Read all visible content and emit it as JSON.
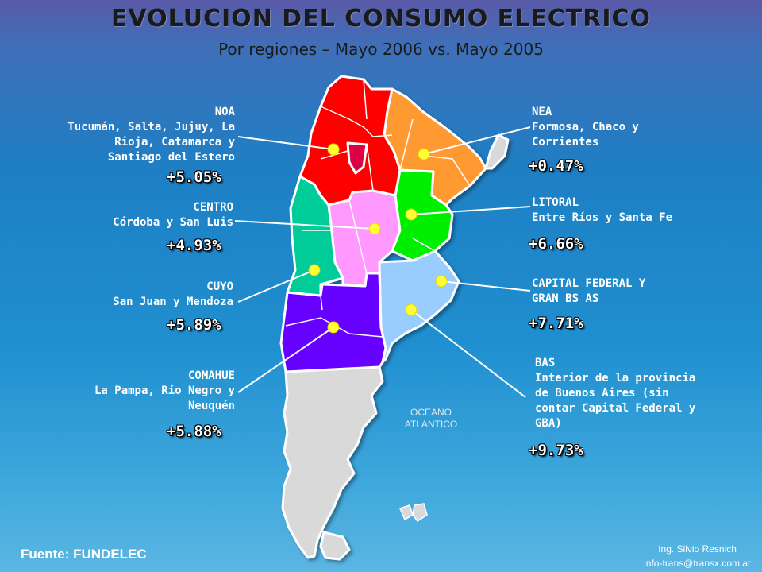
{
  "title": "EVOLUCION DEL CONSUMO ELECTRICO",
  "subtitle": "Por regiones – Mayo 2006 vs. Mayo 2005",
  "regions": {
    "noa": {
      "name": "NOA",
      "lines": [
        "Tucumán, Salta, Jujuy, La",
        "Rioja, Catamarca y",
        "Santiago del Estero"
      ],
      "pct": "+5.05%",
      "value": 5.05,
      "color": "#ff0000"
    },
    "centro": {
      "name": "CENTRO",
      "lines": [
        "Córdoba y San Luis"
      ],
      "pct": "+4.93%",
      "value": 4.93,
      "color": "#ff99ff"
    },
    "cuyo": {
      "name": "CUYO",
      "lines": [
        "San Juan y Mendoza"
      ],
      "pct": "+5.89%",
      "value": 5.89,
      "color": "#00cc99"
    },
    "comahue": {
      "name": "COMAHUE",
      "lines": [
        "La Pampa, Río Negro y",
        "Neuquén"
      ],
      "pct": "+5.88%",
      "value": 5.88,
      "color": "#6600ff"
    },
    "nea": {
      "name": "NEA",
      "lines": [
        "Formosa, Chaco y",
        "Corrientes"
      ],
      "pct": "+0.47%",
      "value": 0.47,
      "color": "#ff9933"
    },
    "litoral": {
      "name": "LITORAL",
      "lines": [
        "Entre Ríos y Santa Fe"
      ],
      "pct": "+6.66%",
      "value": 6.66,
      "color": "#00ee00"
    },
    "capital": {
      "name": "CAPITAL FEDERAL Y",
      "lines": [
        "GRAN BS AS"
      ],
      "pct": "+7.71%",
      "value": 7.71,
      "color": "#99ccff"
    },
    "bas": {
      "name": "BAS",
      "lines": [
        "Interior de la provincia",
        "de Buenos Aires (sin",
        "contar Capital Federal y",
        "GBA)"
      ],
      "pct": "+9.73%",
      "value": 9.73,
      "color": "#99ccff"
    }
  },
  "ocean_label": [
    "OCEANO",
    "ATLANTICO"
  ],
  "source": "Fuente: FUNDELEC",
  "credit": [
    "Ing. Silvio Resnich",
    "info-trans@transx.com.ar"
  ],
  "colors": {
    "patagonia": "#d9d9d9",
    "marker": "#ffff33",
    "outline": "#ffffff",
    "text": "#ffffff",
    "title": "#1a1a1a"
  }
}
